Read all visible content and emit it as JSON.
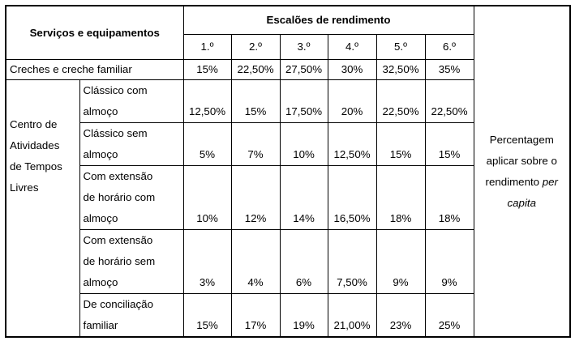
{
  "table": {
    "header": {
      "services_label": "Serviços e equipamentos",
      "group_label": "Escalões de rendimento",
      "levels": [
        "1.º",
        "2.º",
        "3.º",
        "4.º",
        "5.º",
        "6.º"
      ]
    },
    "creche": {
      "label": "Creches e creche familiar",
      "values": [
        "15%",
        "22,50%",
        "27,50%",
        "30%",
        "32,50%",
        "35%"
      ]
    },
    "catl": {
      "label_lines": [
        "Centro de",
        "Atividades",
        "de Tempos",
        "Livres"
      ],
      "rows": [
        {
          "label_lines": [
            "Clássico com",
            "almoço"
          ],
          "values": [
            "12,50%",
            "15%",
            "17,50%",
            "20%",
            "22,50%",
            "22,50%"
          ]
        },
        {
          "label_lines": [
            "Clássico sem",
            "almoço"
          ],
          "values": [
            "5%",
            "7%",
            "10%",
            "12,50%",
            "15%",
            "15%"
          ]
        },
        {
          "label_lines": [
            "Com extensão",
            "de horário com",
            "almoço"
          ],
          "values": [
            "10%",
            "12%",
            "14%",
            "16,50%",
            "18%",
            "18%"
          ]
        },
        {
          "label_lines": [
            "Com extensão",
            "de horário sem",
            "almoço"
          ],
          "values": [
            "3%",
            "4%",
            "6%",
            "7,50%",
            "9%",
            "9%"
          ]
        },
        {
          "label_lines": [
            "De conciliação",
            "familiar"
          ],
          "values": [
            "15%",
            "17%",
            "19%",
            "21,00%",
            "23%",
            "25%"
          ]
        }
      ]
    },
    "note": {
      "line1": "Percentagem",
      "line2": "aplicar sobre o",
      "line3_prefix": "rendimento ",
      "line3_em": "per",
      "line4_em": "capita"
    }
  }
}
